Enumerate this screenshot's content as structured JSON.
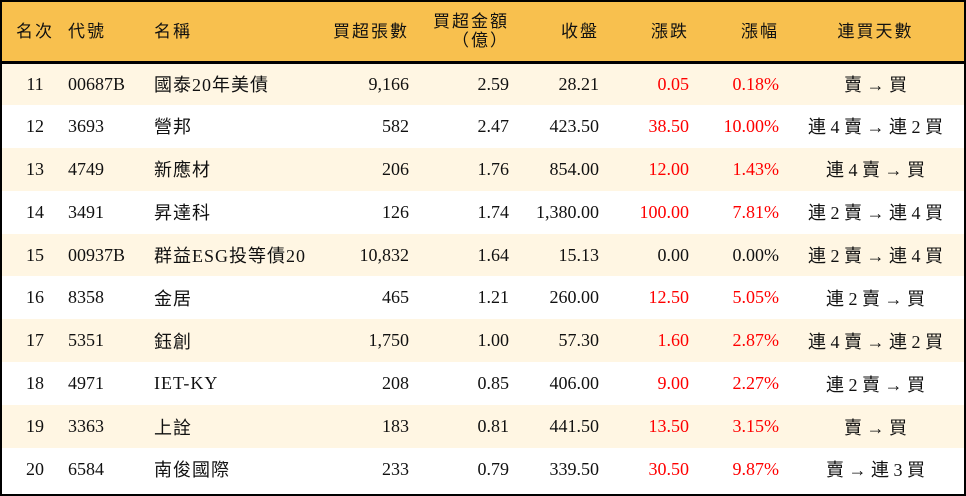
{
  "headers": [
    "名次",
    "代號",
    "名稱",
    "買超張數",
    "買超金額",
    "（億）",
    "收盤",
    "漲跌",
    "漲幅",
    "連買天數"
  ],
  "colors": {
    "header_bg": "#F8C04E",
    "row_alt_bg": "#FFF6E3",
    "up": "#FF0000",
    "text": "#111111"
  },
  "rows": [
    {
      "rank": "11",
      "code": "00687B",
      "name": "國泰20年美債",
      "shares": "9,166",
      "amount": "2.59",
      "close": "28.21",
      "change": "0.05",
      "pct": "0.18%",
      "days": "賣 → 買",
      "up": true
    },
    {
      "rank": "12",
      "code": "3693",
      "name": "營邦",
      "shares": "582",
      "amount": "2.47",
      "close": "423.50",
      "change": "38.50",
      "pct": "10.00%",
      "days": "連 4 賣 → 連 2 買",
      "up": true
    },
    {
      "rank": "13",
      "code": "4749",
      "name": "新應材",
      "shares": "206",
      "amount": "1.76",
      "close": "854.00",
      "change": "12.00",
      "pct": "1.43%",
      "days": "連 4 賣 → 買",
      "up": true
    },
    {
      "rank": "14",
      "code": "3491",
      "name": "昇達科",
      "shares": "126",
      "amount": "1.74",
      "close": "1,380.00",
      "change": "100.00",
      "pct": "7.81%",
      "days": "連 2 賣 → 連 4 買",
      "up": true
    },
    {
      "rank": "15",
      "code": "00937B",
      "name": "群益ESG投等債20",
      "shares": "10,832",
      "amount": "1.64",
      "close": "15.13",
      "change": "0.00",
      "pct": "0.00%",
      "days": "連 2 賣 → 連 4 買",
      "up": false
    },
    {
      "rank": "16",
      "code": "8358",
      "name": "金居",
      "shares": "465",
      "amount": "1.21",
      "close": "260.00",
      "change": "12.50",
      "pct": "5.05%",
      "days": "連 2 賣 → 買",
      "up": true
    },
    {
      "rank": "17",
      "code": "5351",
      "name": "鈺創",
      "shares": "1,750",
      "amount": "1.00",
      "close": "57.30",
      "change": "1.60",
      "pct": "2.87%",
      "days": "連 4 賣 → 連 2 買",
      "up": true
    },
    {
      "rank": "18",
      "code": "4971",
      "name": "IET-KY",
      "shares": "208",
      "amount": "0.85",
      "close": "406.00",
      "change": "9.00",
      "pct": "2.27%",
      "days": "連 2 賣 → 買",
      "up": true
    },
    {
      "rank": "19",
      "code": "3363",
      "name": "上詮",
      "shares": "183",
      "amount": "0.81",
      "close": "441.50",
      "change": "13.50",
      "pct": "3.15%",
      "days": "賣 → 買",
      "up": true
    },
    {
      "rank": "20",
      "code": "6584",
      "name": "南俊國際",
      "shares": "233",
      "amount": "0.79",
      "close": "339.50",
      "change": "30.50",
      "pct": "9.87%",
      "days": "賣 → 連 3 買",
      "up": true
    }
  ]
}
